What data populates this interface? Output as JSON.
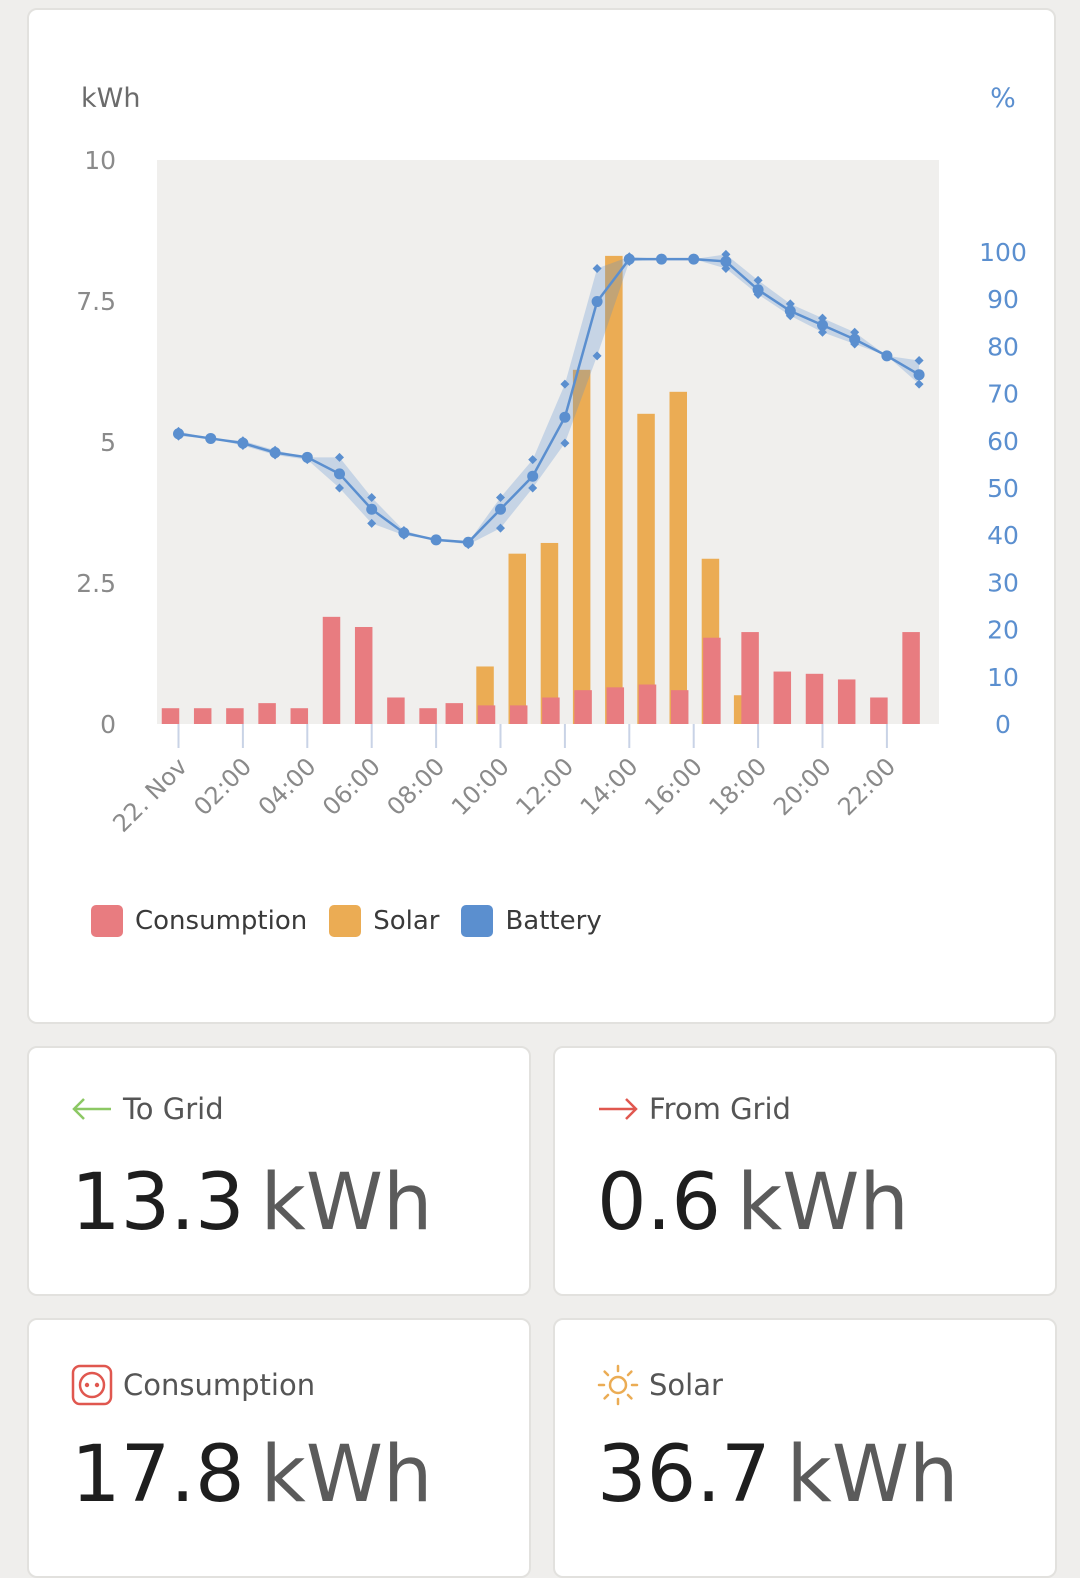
{
  "chart_data": {
    "type": "bar+line",
    "y_left_label": "kWh",
    "y_right_label": "%",
    "y_left_ticks": [
      "10",
      "7.5",
      "5",
      "2.5",
      "0"
    ],
    "y_right_ticks": [
      "100",
      "90",
      "80",
      "70",
      "60",
      "50",
      "40",
      "30",
      "20",
      "10",
      "0"
    ],
    "ylim_left": [
      0,
      10
    ],
    "ylim_right": [
      0,
      100
    ],
    "x_tick_labels": [
      "22. Nov",
      "02:00",
      "04:00",
      "06:00",
      "08:00",
      "10:00",
      "12:00",
      "14:00",
      "16:00",
      "18:00",
      "20:00",
      "22:00"
    ],
    "hours": [
      "00:00",
      "01:00",
      "02:00",
      "03:00",
      "04:00",
      "05:00",
      "06:00",
      "07:00",
      "08:00",
      "09:00",
      "10:00",
      "11:00",
      "12:00",
      "13:00",
      "14:00",
      "15:00",
      "16:00",
      "17:00",
      "18:00",
      "19:00",
      "20:00",
      "21:00",
      "22:00",
      "23:00"
    ],
    "series": [
      {
        "name": "Consumption",
        "type": "bar",
        "color": "#e87c80",
        "values": [
          0.28,
          0.28,
          0.28,
          0.37,
          0.28,
          1.9,
          1.72,
          0.47,
          0.28,
          0.37,
          0.33,
          0.33,
          0.47,
          0.6,
          0.65,
          0.7,
          0.6,
          1.53,
          1.63,
          0.93,
          0.89,
          0.79,
          0.47,
          1.63
        ]
      },
      {
        "name": "Solar",
        "type": "bar",
        "color": "#ebac54",
        "values": [
          0,
          0,
          0,
          0,
          0,
          0,
          0,
          0,
          0,
          1.02,
          3.02,
          3.21,
          6.28,
          8.3,
          5.5,
          5.89,
          2.93,
          0.51,
          0,
          0,
          0,
          0,
          0,
          0
        ]
      },
      {
        "name": "Battery",
        "type": "line",
        "color": "#5b8fcf",
        "values": [
          61.5,
          60.5,
          59.5,
          57.5,
          56.5,
          53,
          45.5,
          40.5,
          39,
          38.5,
          45.5,
          52.5,
          65,
          89.5,
          98.5,
          98.5,
          98.5,
          98,
          92,
          87.5,
          84.5,
          81.5,
          78,
          74
        ],
        "min": [
          61,
          60.5,
          59,
          57,
          56,
          50,
          42.5,
          40,
          39,
          38,
          41.5,
          50,
          59.5,
          78,
          98,
          98.5,
          98.5,
          96.5,
          91,
          86.5,
          83,
          80.5,
          78,
          72
        ],
        "max": [
          62,
          60.5,
          60,
          58,
          56.5,
          56.5,
          48,
          41,
          39,
          38.5,
          48,
          56,
          72,
          96.5,
          99,
          98.5,
          98.5,
          99.5,
          94,
          89,
          86,
          83,
          78,
          77
        ]
      }
    ],
    "grid": false,
    "legend_position": "bottom-left"
  },
  "legend": [
    {
      "label": "Consumption",
      "color": "#e87c80"
    },
    {
      "label": "Solar",
      "color": "#ebac54"
    },
    {
      "label": "Battery",
      "color": "#5b8fcf"
    }
  ],
  "stats": {
    "to_grid": {
      "label": "To Grid",
      "value": "13.3",
      "unit": "kWh",
      "icon": "arrow-left-icon",
      "icon_color": "#8cc864"
    },
    "from_grid": {
      "label": "From Grid",
      "value": "0.6",
      "unit": "kWh",
      "icon": "arrow-right-icon",
      "icon_color": "#e0574f"
    },
    "consumption": {
      "label": "Consumption",
      "value": "17.8",
      "unit": "kWh",
      "icon": "power-socket-icon",
      "icon_color": "#e0574f"
    },
    "solar": {
      "label": "Solar",
      "value": "36.7",
      "unit": "kWh",
      "icon": "sun-icon",
      "icon_color": "#ebac54"
    }
  }
}
